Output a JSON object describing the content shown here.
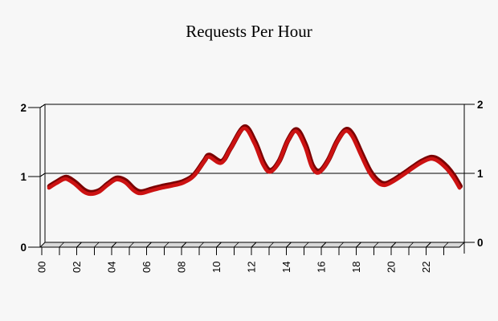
{
  "chart_data": {
    "type": "line",
    "title": "Requests Per Hour",
    "xlabel": "",
    "ylabel": "",
    "x_unit": "hour of day",
    "xlim": [
      0,
      24
    ],
    "ylim": [
      0,
      2
    ],
    "grid": "horizontal line at y=1 only",
    "legend_position": "none",
    "y_ticks": [
      2,
      1,
      0
    ],
    "y_tick_labels_left": [
      "2",
      "1",
      "0"
    ],
    "y_tick_labels_right": [
      "2",
      "1",
      "0"
    ],
    "x_tick_hours": [
      0,
      2,
      4,
      6,
      8,
      10,
      12,
      14,
      16,
      18,
      20,
      22
    ],
    "x_tick_labels": [
      "00",
      "02",
      "04",
      "06",
      "08",
      "10",
      "12",
      "14",
      "16",
      "18",
      "20",
      "22"
    ],
    "x_label_rotation_deg": -90,
    "minor_x_tick_hours": [
      0,
      1,
      2,
      3,
      4,
      5,
      6,
      7,
      8,
      9,
      10,
      11,
      12,
      13,
      14,
      15,
      16,
      17,
      18,
      19,
      20,
      21,
      22,
      23
    ],
    "gridlines_y": [
      1
    ],
    "style": {
      "background": "#f7f7f7",
      "axis_color": "#000000",
      "floor_color": "#d9d9d9",
      "line_color": "#cc1212",
      "line_shadow_color": "#7a0000",
      "frame_effect": "3d beveled wall and segmented floor"
    },
    "series": [
      {
        "name": "requests-per-hour",
        "points": [
          [
            0.15,
            0.8
          ],
          [
            0.6,
            0.87
          ],
          [
            1.1,
            0.93
          ],
          [
            1.6,
            0.86
          ],
          [
            2.1,
            0.75
          ],
          [
            2.5,
            0.71
          ],
          [
            3.0,
            0.74
          ],
          [
            3.5,
            0.84
          ],
          [
            4.0,
            0.92
          ],
          [
            4.5,
            0.88
          ],
          [
            5.0,
            0.76
          ],
          [
            5.4,
            0.72
          ],
          [
            6.0,
            0.76
          ],
          [
            6.6,
            0.8
          ],
          [
            7.2,
            0.83
          ],
          [
            7.8,
            0.87
          ],
          [
            8.4,
            0.96
          ],
          [
            9.0,
            1.17
          ],
          [
            9.3,
            1.25
          ],
          [
            10.0,
            1.16
          ],
          [
            10.5,
            1.35
          ],
          [
            11.3,
            1.66
          ],
          [
            11.9,
            1.45
          ],
          [
            12.4,
            1.14
          ],
          [
            12.8,
            1.03
          ],
          [
            13.3,
            1.17
          ],
          [
            13.8,
            1.47
          ],
          [
            14.3,
            1.62
          ],
          [
            14.8,
            1.4
          ],
          [
            15.2,
            1.1
          ],
          [
            15.6,
            1.02
          ],
          [
            16.1,
            1.18
          ],
          [
            16.6,
            1.45
          ],
          [
            17.1,
            1.62
          ],
          [
            17.5,
            1.55
          ],
          [
            18.0,
            1.28
          ],
          [
            18.5,
            1.02
          ],
          [
            19.0,
            0.87
          ],
          [
            19.4,
            0.84
          ],
          [
            19.9,
            0.9
          ],
          [
            20.5,
            1.0
          ],
          [
            21.0,
            1.09
          ],
          [
            21.5,
            1.17
          ],
          [
            22.0,
            1.22
          ],
          [
            22.4,
            1.19
          ],
          [
            22.9,
            1.08
          ],
          [
            23.3,
            0.95
          ],
          [
            23.65,
            0.8
          ]
        ]
      }
    ]
  }
}
